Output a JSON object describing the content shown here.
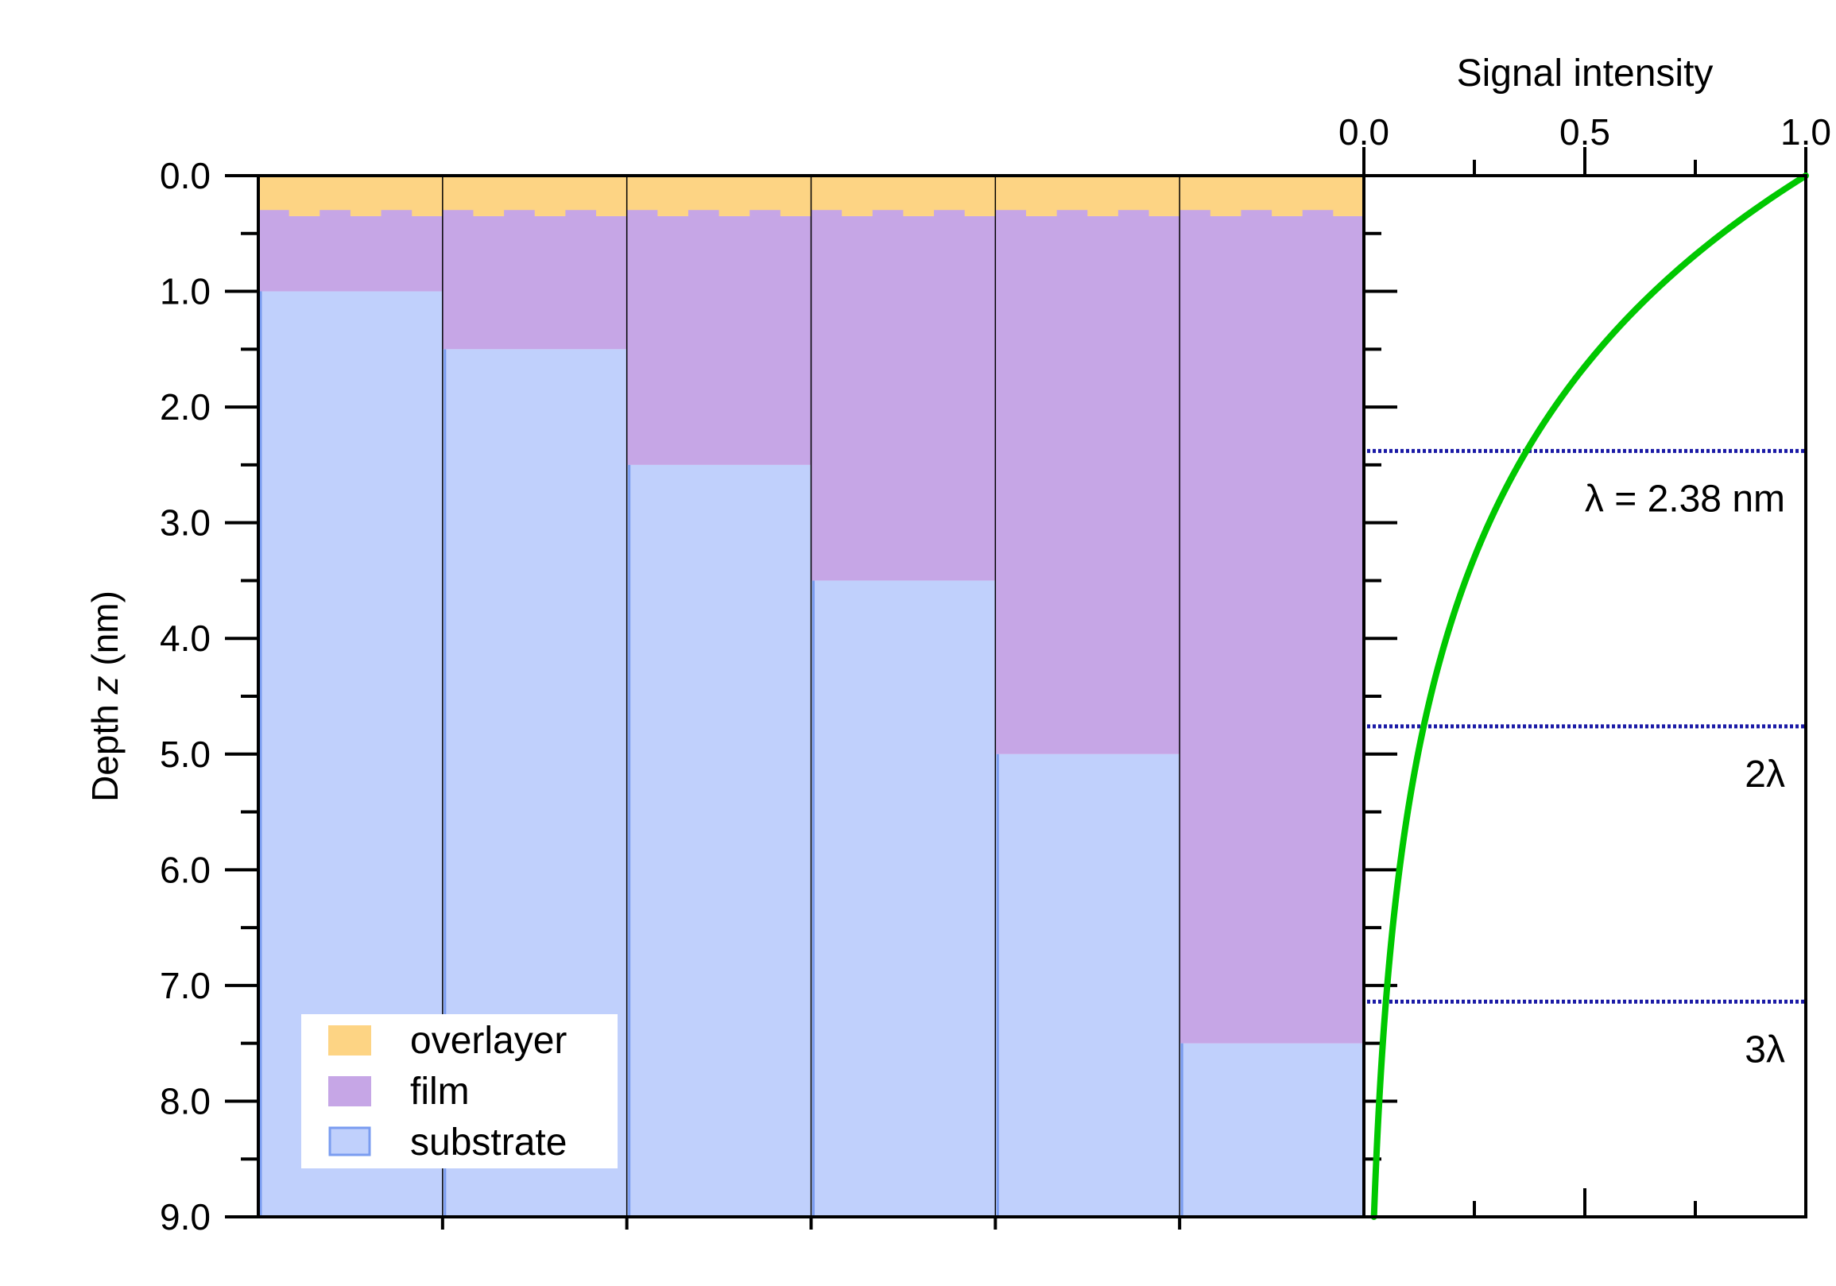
{
  "chart_data": [
    {
      "type": "bar",
      "subtype": "stacked depth profile",
      "columns": [
        {
          "overlayer": [
            0,
            0.35
          ],
          "film": [
            0.35,
            1.0
          ],
          "substrate": [
            1.0,
            9.0
          ]
        },
        {
          "overlayer": [
            0,
            0.35
          ],
          "film": [
            0.35,
            1.5
          ],
          "substrate": [
            1.5,
            9.0
          ]
        },
        {
          "overlayer": [
            0,
            0.35
          ],
          "film": [
            0.35,
            2.5
          ],
          "substrate": [
            2.5,
            9.0
          ]
        },
        {
          "overlayer": [
            0,
            0.35
          ],
          "film": [
            0.35,
            3.5
          ],
          "substrate": [
            3.5,
            9.0
          ]
        },
        {
          "overlayer": [
            0,
            0.35
          ],
          "film": [
            0.35,
            5.0
          ],
          "substrate": [
            5.0,
            9.0
          ]
        },
        {
          "overlayer": [
            0,
            0.35
          ],
          "film": [
            0.35,
            7.5
          ],
          "substrate": [
            7.5,
            9.0
          ]
        }
      ],
      "ylabel_prefix": "Depth ",
      "ylabel_var": "z",
      "ylabel_suffix": " (nm)",
      "ylim": [
        0,
        9
      ],
      "y_reversed": true,
      "yticks": [
        "0.0",
        "1.0",
        "2.0",
        "3.0",
        "4.0",
        "5.0",
        "6.0",
        "7.0",
        "8.0",
        "9.0"
      ],
      "y_minor_step": 0.5,
      "x_ticks": 6,
      "legend": {
        "position": "bottom-left",
        "entries": [
          {
            "name": "overlayer",
            "color": "#fdd484"
          },
          {
            "name": "film",
            "color": "#c6a6e6"
          },
          {
            "name": "substrate",
            "color": "#c0d0fc",
            "edge": "#7a9cf0"
          }
        ]
      },
      "colors": {
        "overlayer": "#fdd484",
        "film": "#c6a6e6",
        "substrate": "#c0d0fc"
      }
    },
    {
      "type": "line",
      "xlabel": "Signal intensity",
      "xlim": [
        0,
        1
      ],
      "xticks": [
        "0.0",
        "0.5",
        "1.0"
      ],
      "x_minor_step": 0.25,
      "ylim": [
        0,
        9
      ],
      "y_reversed": true,
      "series": [
        {
          "function": "exp(-z/2.38)",
          "lambda_nm": 2.38,
          "color": "#00c800"
        }
      ],
      "reference_lines": [
        {
          "z": 2.38,
          "label": "λ = 2.38 nm"
        },
        {
          "z": 4.76,
          "label": "2λ"
        },
        {
          "z": 7.14,
          "label": "3λ"
        }
      ],
      "reference_color": "#1a1aa6"
    }
  ]
}
